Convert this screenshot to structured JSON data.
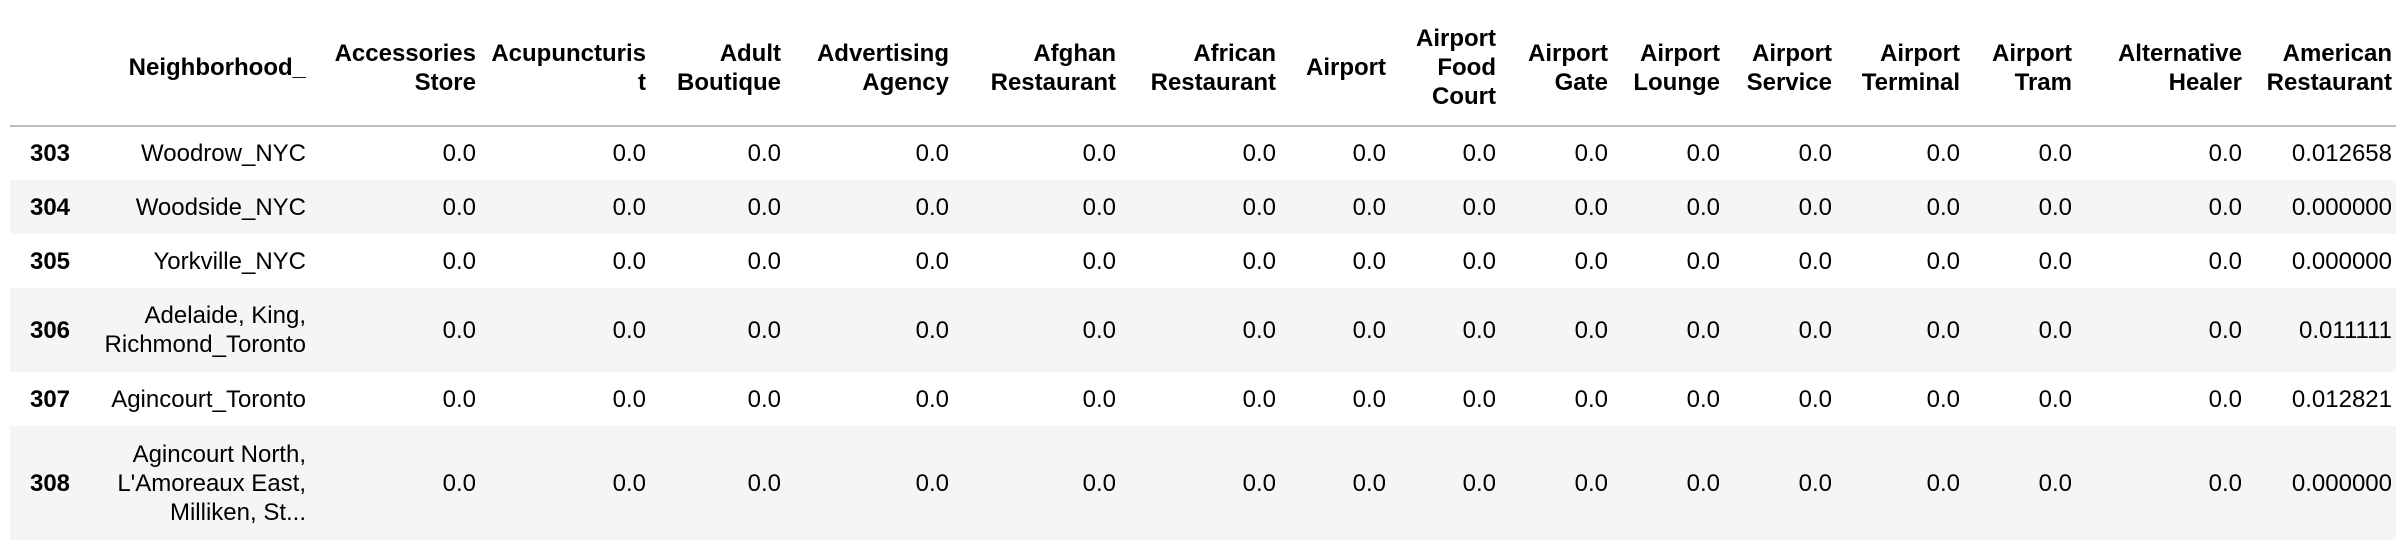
{
  "table": {
    "columns": [
      "",
      "Neighborhood_",
      "Accessories Store",
      "Acupuncturist",
      "Adult Boutique",
      "Advertising Agency",
      "Afghan Restaurant",
      "African Restaurant",
      "Airport",
      "Airport Food Court",
      "Airport Gate",
      "Airport Lounge",
      "Airport Service",
      "Airport Terminal",
      "Airport Tram",
      "Alternative Healer",
      "American Restaurant"
    ],
    "rows": [
      {
        "index": "303",
        "cells": [
          "Woodrow_NYC",
          "0.0",
          "0.0",
          "0.0",
          "0.0",
          "0.0",
          "0.0",
          "0.0",
          "0.0",
          "0.0",
          "0.0",
          "0.0",
          "0.0",
          "0.0",
          "0.0",
          "0.012658"
        ]
      },
      {
        "index": "304",
        "cells": [
          "Woodside_NYC",
          "0.0",
          "0.0",
          "0.0",
          "0.0",
          "0.0",
          "0.0",
          "0.0",
          "0.0",
          "0.0",
          "0.0",
          "0.0",
          "0.0",
          "0.0",
          "0.0",
          "0.000000"
        ]
      },
      {
        "index": "305",
        "cells": [
          "Yorkville_NYC",
          "0.0",
          "0.0",
          "0.0",
          "0.0",
          "0.0",
          "0.0",
          "0.0",
          "0.0",
          "0.0",
          "0.0",
          "0.0",
          "0.0",
          "0.0",
          "0.0",
          "0.000000"
        ]
      },
      {
        "index": "306",
        "cells": [
          "Adelaide, King, Richmond_Toronto",
          "0.0",
          "0.0",
          "0.0",
          "0.0",
          "0.0",
          "0.0",
          "0.0",
          "0.0",
          "0.0",
          "0.0",
          "0.0",
          "0.0",
          "0.0",
          "0.0",
          "0.011111"
        ]
      },
      {
        "index": "307",
        "cells": [
          "Agincourt_Toronto",
          "0.0",
          "0.0",
          "0.0",
          "0.0",
          "0.0",
          "0.0",
          "0.0",
          "0.0",
          "0.0",
          "0.0",
          "0.0",
          "0.0",
          "0.0",
          "0.0",
          "0.012821"
        ]
      },
      {
        "index": "308",
        "cells": [
          "Agincourt North, L'Amoreaux East, Milliken, St...",
          "0.0",
          "0.0",
          "0.0",
          "0.0",
          "0.0",
          "0.0",
          "0.0",
          "0.0",
          "0.0",
          "0.0",
          "0.0",
          "0.0",
          "0.0",
          "0.0",
          "0.000000"
        ]
      }
    ]
  }
}
